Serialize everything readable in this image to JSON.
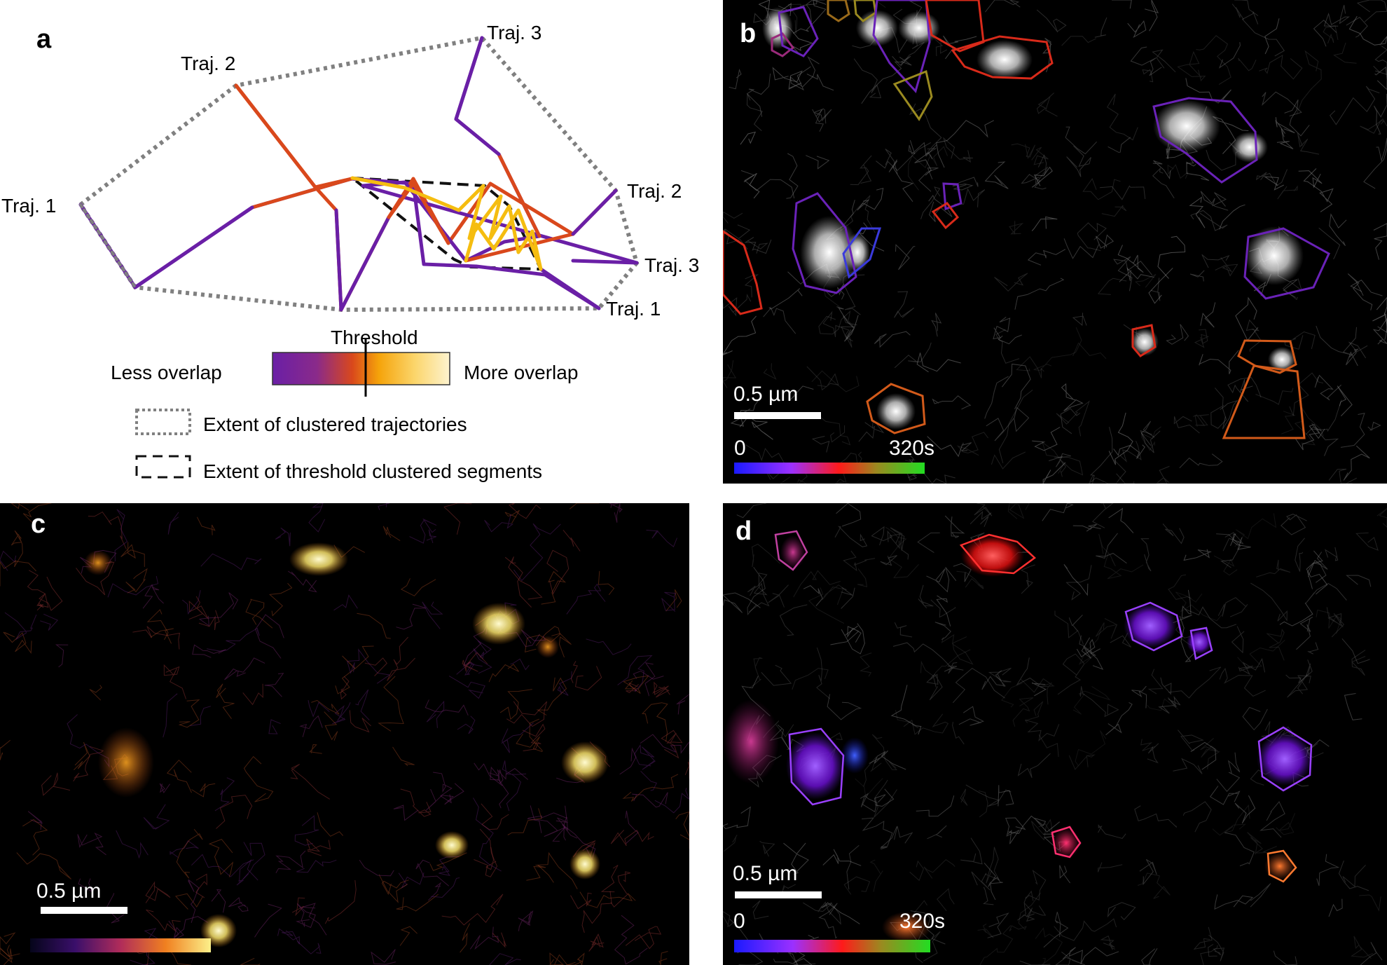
{
  "panels": {
    "a": {
      "letter": "a",
      "traj_labels": {
        "left_1": "Traj. 1",
        "left_2": "Traj. 2",
        "top_3": "Traj. 3",
        "right_2": "Traj. 2",
        "right_3": "Traj. 3",
        "right_1": "Traj. 1"
      },
      "threshold_label": "Threshold",
      "less_overlap": "Less overlap",
      "more_overlap": "More overlap",
      "legend_clustered": "Extent of clustered trajectories",
      "legend_threshold": "Extent of threshold clustered segments",
      "colors": {
        "purple": "#6a1fa6",
        "orange": "#d9481c",
        "yellow": "#f5bd10",
        "gray": "#808080"
      }
    },
    "b": {
      "letter": "b",
      "scale_label": "0.5 µm",
      "time_start": "0",
      "time_end": "320s"
    },
    "c": {
      "letter": "c",
      "scale_label": "0.5 µm"
    },
    "d": {
      "letter": "d",
      "scale_label": "0.5 µm",
      "time_start": "0",
      "time_end": "320s"
    }
  }
}
